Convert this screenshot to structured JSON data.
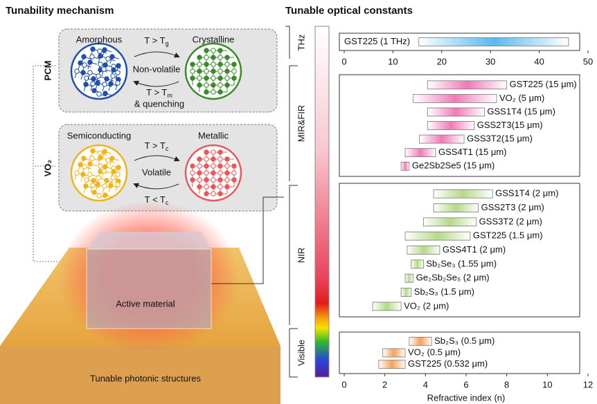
{
  "diagram": {
    "title": "Tunability mechanism",
    "pcm_label": "PCM",
    "vo2_label": "VO₂",
    "pcm": {
      "state_a": "Amorphous",
      "state_b": "Crystalline",
      "forward": {
        "main": "T > T",
        "sub": "g"
      },
      "mode": "Non-volatile",
      "backward": {
        "main": "T > T",
        "sub": "m"
      },
      "backward_extra": "& quenching"
    },
    "vo2": {
      "state_a": "Semiconducting",
      "state_b": "Metallic",
      "forward": {
        "main": "T > T",
        "sub": "c"
      },
      "mode": "Volatile",
      "backward": {
        "main": "T < T",
        "sub": "c"
      }
    },
    "active_material": "Active material",
    "substrate": "Tunable photonic structures"
  },
  "chart_data": {
    "type": "range",
    "title": "Tunable optical constants",
    "xlabel": "Refractive index (n)",
    "xlim": [
      0,
      12
    ],
    "xticks": [
      0,
      2,
      4,
      6,
      8,
      10,
      12
    ],
    "panels": [
      {
        "band": "THz",
        "color": "#5ab8ee",
        "xlim": [
          0,
          50
        ],
        "xticks": [
          0,
          10,
          20,
          30,
          40,
          50
        ],
        "categories": [
          "GST225 (1 THz)"
        ],
        "low": [
          15.3
        ],
        "high": [
          46
        ]
      },
      {
        "band": "MIR&FIR",
        "color": "#f07ab8",
        "categories": [
          "GST225 (15 μm)",
          "VO₂ (5 μm)",
          "GSS1T4 (15 μm)",
          "GSS2T3(15 μm)",
          "GSS3T2(15 μm)",
          "GSS4T1 (15 μm)",
          "Ge2Sb2Se5 (15 μm)"
        ],
        "low": [
          4.1,
          3.4,
          4.1,
          4.1,
          3.7,
          3.0,
          2.8
        ],
        "high": [
          8.0,
          7.5,
          6.9,
          6.4,
          5.9,
          4.5,
          3.2
        ]
      },
      {
        "band": "NIR",
        "color": "#b5da88",
        "categories": [
          "GSS1T4 (2 μm)",
          "GSS2T3 (2 μm)",
          "GSS3T2 (2 μm)",
          "GST225 (1.5 μm)",
          "GSS4T1 (2 μm)",
          "Sb₂Se₃ (1.55 μm)",
          "Ge₂Sb₂Se₅ (2 μm)",
          "Sb₂S₃ (1.5 μm)",
          "VO₂ (2 μm)"
        ],
        "low": [
          4.4,
          4.4,
          3.9,
          3.0,
          3.1,
          3.3,
          3.0,
          2.8,
          1.4
        ],
        "high": [
          7.3,
          6.6,
          6.5,
          6.2,
          4.7,
          3.9,
          3.4,
          3.3,
          2.8
        ]
      },
      {
        "band": "Visible",
        "color": "#f5a05a",
        "categories": [
          "Sb₂S₃ (0.5 μm)",
          "VO₂ (0.5 μm)",
          "GST225 (0.532 μm)"
        ],
        "low": [
          3.2,
          1.9,
          1.7
        ],
        "high": [
          4.3,
          3.0,
          3.0
        ]
      }
    ]
  }
}
